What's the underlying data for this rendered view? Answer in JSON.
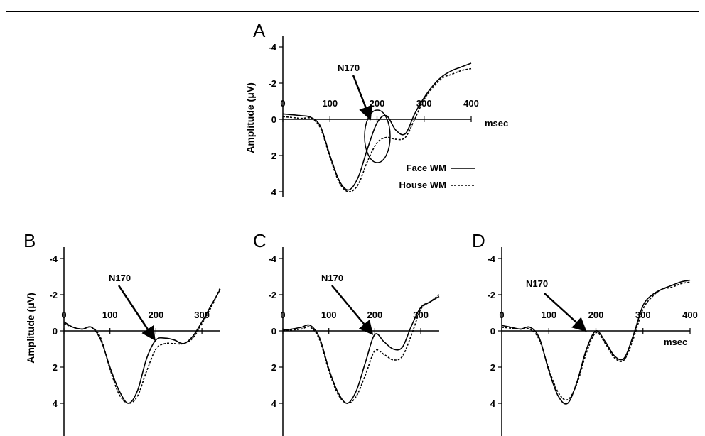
{
  "chart_data": [
    {
      "panel": "A",
      "type": "line",
      "xlabel": "msec",
      "ylabel": "Amplitude (μV)",
      "xlim": [
        0,
        400
      ],
      "ylim": [
        -4,
        4
      ],
      "y_inverted": true,
      "xticks": [
        "0",
        "100",
        "200",
        "300",
        "400"
      ],
      "yticks": [
        "-4",
        "-2",
        "0",
        "2",
        "4"
      ],
      "annotation": "N170",
      "series": [
        {
          "name": "Face WM",
          "style": "solid",
          "x": [
            0,
            20,
            40,
            60,
            80,
            100,
            120,
            140,
            160,
            180,
            200,
            220,
            240,
            260,
            280,
            300,
            320,
            340,
            360,
            380,
            400
          ],
          "y": [
            -0.3,
            -0.25,
            -0.2,
            -0.1,
            0.4,
            2.0,
            3.4,
            3.9,
            3.2,
            1.6,
            0.2,
            -0.2,
            0.6,
            0.8,
            -0.3,
            -1.2,
            -1.9,
            -2.4,
            -2.7,
            -2.9,
            -3.1
          ]
        },
        {
          "name": "House WM",
          "style": "dashed",
          "x": [
            0,
            20,
            40,
            60,
            80,
            100,
            120,
            140,
            160,
            180,
            200,
            220,
            240,
            260,
            280,
            300,
            320,
            340,
            360,
            380,
            400
          ],
          "y": [
            -0.15,
            -0.1,
            -0.05,
            -0.05,
            0.5,
            2.1,
            3.5,
            4.0,
            3.6,
            2.3,
            1.3,
            1.0,
            1.1,
            1.0,
            0.0,
            -1.1,
            -1.8,
            -2.3,
            -2.5,
            -2.7,
            -2.8
          ]
        }
      ]
    },
    {
      "panel": "B",
      "type": "line",
      "ylabel": "Amplitude (μV)",
      "xlim": [
        0,
        340
      ],
      "ylim": [
        -4,
        4
      ],
      "y_inverted": true,
      "xticks": [
        "0",
        "100",
        "200",
        "300"
      ],
      "yticks": [
        "-4",
        "-2",
        "0",
        "2",
        "4"
      ],
      "annotation": "N170",
      "series": [
        {
          "name": "Face WM",
          "style": "solid",
          "x": [
            0,
            20,
            40,
            60,
            80,
            100,
            120,
            140,
            160,
            180,
            200,
            220,
            240,
            260,
            280,
            300,
            320,
            340
          ],
          "y": [
            -0.5,
            -0.2,
            -0.1,
            -0.2,
            0.5,
            2.0,
            3.3,
            4.0,
            3.3,
            1.5,
            0.5,
            0.4,
            0.5,
            0.7,
            0.3,
            -0.5,
            -1.4,
            -2.3
          ]
        },
        {
          "name": "House WM",
          "style": "dashed",
          "x": [
            0,
            20,
            40,
            60,
            80,
            100,
            120,
            140,
            160,
            180,
            200,
            220,
            240,
            260,
            280,
            300,
            320,
            340
          ],
          "y": [
            -0.4,
            -0.2,
            -0.1,
            -0.2,
            0.4,
            2.1,
            3.5,
            4.0,
            3.6,
            2.2,
            1.0,
            0.7,
            0.7,
            0.7,
            0.4,
            -0.4,
            -1.3,
            -2.4
          ]
        }
      ]
    },
    {
      "panel": "C",
      "type": "line",
      "xlim": [
        0,
        340
      ],
      "ylim": [
        -4,
        4
      ],
      "y_inverted": true,
      "xticks": [
        "0",
        "100",
        "200",
        "300"
      ],
      "yticks": [
        "-4",
        "-2",
        "0",
        "2",
        "4"
      ],
      "annotation": "N170",
      "series": [
        {
          "name": "Face WM",
          "style": "solid",
          "x": [
            0,
            20,
            40,
            60,
            80,
            100,
            120,
            140,
            160,
            180,
            200,
            220,
            240,
            260,
            280,
            300,
            320,
            340
          ],
          "y": [
            -0.05,
            -0.1,
            -0.2,
            -0.3,
            0.4,
            2.1,
            3.4,
            4.0,
            3.3,
            1.7,
            0.2,
            0.6,
            1.0,
            0.9,
            -0.3,
            -1.3,
            -1.6,
            -1.9
          ]
        },
        {
          "name": "House WM",
          "style": "dashed",
          "x": [
            0,
            20,
            40,
            60,
            80,
            100,
            120,
            140,
            160,
            180,
            200,
            220,
            240,
            260,
            280,
            300,
            320,
            340
          ],
          "y": [
            0.0,
            -0.05,
            -0.1,
            -0.2,
            0.5,
            2.2,
            3.5,
            4.0,
            3.6,
            2.4,
            1.1,
            1.3,
            1.6,
            1.4,
            0.2,
            -1.2,
            -1.6,
            -2.0
          ]
        }
      ]
    },
    {
      "panel": "D",
      "type": "line",
      "xlabel": "msec",
      "xlim": [
        0,
        400
      ],
      "ylim": [
        -4,
        4
      ],
      "y_inverted": true,
      "xticks": [
        "0",
        "100",
        "200",
        "300",
        "400"
      ],
      "yticks": [
        "-4",
        "-2",
        "0",
        "2",
        "4"
      ],
      "annotation": "N170",
      "series": [
        {
          "name": "Face WM",
          "style": "solid",
          "x": [
            0,
            20,
            40,
            60,
            80,
            100,
            120,
            140,
            160,
            180,
            200,
            220,
            240,
            260,
            280,
            300,
            320,
            340,
            360,
            380,
            400
          ],
          "y": [
            -0.3,
            -0.2,
            -0.1,
            -0.2,
            0.4,
            2.2,
            3.6,
            4.0,
            2.8,
            1.0,
            0.0,
            0.6,
            1.4,
            1.5,
            0.2,
            -1.4,
            -2.0,
            -2.3,
            -2.5,
            -2.7,
            -2.8
          ]
        },
        {
          "name": "House WM",
          "style": "dashed",
          "x": [
            0,
            20,
            40,
            60,
            80,
            100,
            120,
            140,
            160,
            180,
            200,
            220,
            240,
            260,
            280,
            300,
            320,
            340,
            360,
            380,
            400
          ],
          "y": [
            -0.2,
            -0.15,
            -0.1,
            -0.1,
            0.5,
            2.1,
            3.4,
            3.8,
            2.9,
            1.2,
            0.1,
            0.7,
            1.5,
            1.6,
            0.4,
            -1.2,
            -1.9,
            -2.3,
            -2.4,
            -2.6,
            -2.7
          ]
        }
      ]
    }
  ]
}
